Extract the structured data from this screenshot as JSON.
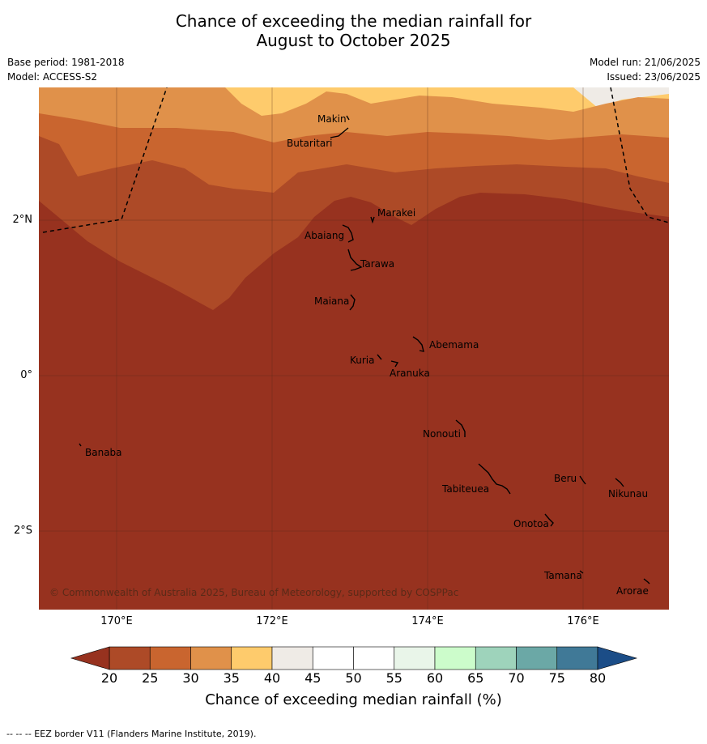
{
  "title": {
    "line1": "Chance of exceeding the median rainfall for",
    "line2": "August to October 2025"
  },
  "meta": {
    "base_period": "Base period: 1981-2018",
    "model": "Model: ACCESS-S2",
    "model_run": "Model run: 21/06/2025",
    "issued": "Issued: 23/06/2025"
  },
  "map": {
    "x_ticks": [
      "170°E",
      "172°E",
      "174°E",
      "176°E"
    ],
    "y_ticks": [
      "2°N",
      "0°",
      "2°S"
    ],
    "copyright": "© Commonwealth of Australia 2025, Bureau of Meteorology, supported by COSPPac",
    "islands": [
      "Makin",
      "Butaritari",
      "Marakei",
      "Abaiang",
      "Tarawa",
      "Maiana",
      "Abemama",
      "Kuria",
      "Aranuka",
      "Nonouti",
      "Banaba",
      "Beru",
      "Nikunau",
      "Tabiteuea",
      "Onotoa",
      "Tamana",
      "Arorae"
    ]
  },
  "colorbar": {
    "ticks": [
      "20",
      "25",
      "30",
      "35",
      "40",
      "45",
      "50",
      "55",
      "60",
      "65",
      "70",
      "75",
      "80"
    ],
    "colors": [
      "#ad4a27",
      "#c9652f",
      "#e0914a",
      "#fecb6c",
      "#efebe6",
      "#ffffff",
      "#ffffff",
      "#e9f5e9",
      "#ccfccb",
      "#9ed3bb",
      "#6ba8a6",
      "#407997"
    ],
    "under_color": "#97321f",
    "over_color": "#1b4d87",
    "title": "Chance of exceeding median rainfall (%)"
  },
  "footnote": "--  --  -- EEZ border V11 (Flanders Marine Institute, 2019)."
}
